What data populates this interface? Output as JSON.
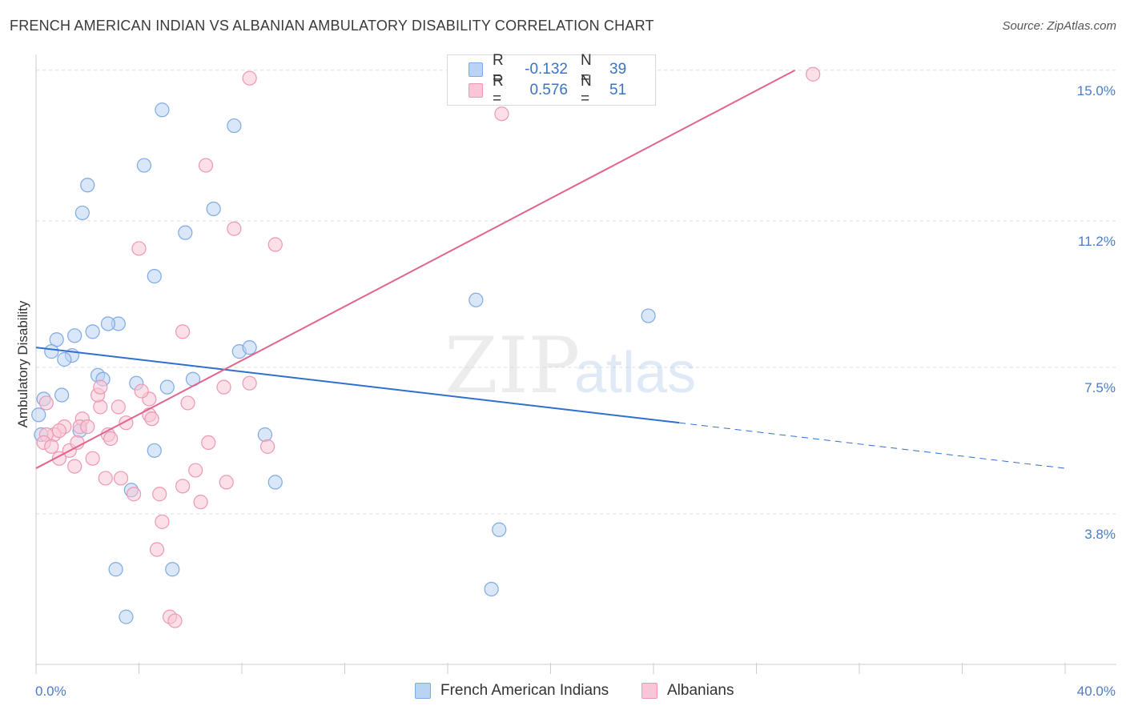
{
  "title": "FRENCH AMERICAN INDIAN VS ALBANIAN AMBULATORY DISABILITY CORRELATION CHART",
  "source": "Source: ZipAtlas.com",
  "watermark": {
    "zip": "ZIP",
    "atlas": "atlas"
  },
  "colors": {
    "blue_fill": "#b9d3f2",
    "blue_stroke": "#7eaae3",
    "blue_line": "#2f6fce",
    "pink_fill": "#f8c6d6",
    "pink_stroke": "#ec97b4",
    "pink_line": "#e0648e",
    "grid": "#dddddd",
    "label": "#4a7cc9"
  },
  "legend": {
    "rows": [
      {
        "r_label": "R =",
        "r_value": "-0.132",
        "n_label": "N =",
        "n_value": "39"
      },
      {
        "r_label": "R =",
        "r_value": "0.576",
        "n_label": "N =",
        "n_value": "51"
      }
    ]
  },
  "bottom_legend": {
    "series1": "French American Indians",
    "series2": "Albanians"
  },
  "chart_data": {
    "type": "scatter",
    "xlabel": "",
    "ylabel": "Ambulatory Disability",
    "xlim": [
      0,
      40
    ],
    "ylim": [
      0,
      15.4
    ],
    "x_tick_labels": [
      "0.0%",
      "40.0%"
    ],
    "y_ticks": [
      3.8,
      7.5,
      11.2,
      15.0
    ],
    "y_tick_labels": [
      "3.8%",
      "7.5%",
      "11.2%",
      "15.0%"
    ],
    "grid": true,
    "series": [
      {
        "name": "French American Indians",
        "color": "#b9d3f2",
        "points": [
          [
            4.9,
            14.0
          ],
          [
            7.7,
            13.6
          ],
          [
            4.2,
            12.6
          ],
          [
            2.0,
            12.1
          ],
          [
            1.8,
            11.4
          ],
          [
            6.9,
            11.5
          ],
          [
            5.8,
            10.9
          ],
          [
            4.6,
            9.8
          ],
          [
            17.1,
            9.2
          ],
          [
            23.8,
            8.8
          ],
          [
            3.2,
            8.6
          ],
          [
            2.8,
            8.6
          ],
          [
            2.2,
            8.4
          ],
          [
            1.5,
            8.3
          ],
          [
            0.8,
            8.2
          ],
          [
            0.6,
            7.9
          ],
          [
            7.9,
            7.9
          ],
          [
            8.3,
            8.0
          ],
          [
            1.4,
            7.8
          ],
          [
            1.1,
            7.7
          ],
          [
            2.4,
            7.3
          ],
          [
            2.6,
            7.2
          ],
          [
            6.1,
            7.2
          ],
          [
            3.9,
            7.1
          ],
          [
            5.1,
            7.0
          ],
          [
            1.0,
            6.8
          ],
          [
            0.3,
            6.7
          ],
          [
            1.7,
            5.9
          ],
          [
            8.9,
            5.8
          ],
          [
            4.6,
            5.4
          ],
          [
            9.3,
            4.6
          ],
          [
            3.7,
            4.4
          ],
          [
            18.0,
            3.4
          ],
          [
            3.1,
            2.4
          ],
          [
            5.3,
            2.4
          ],
          [
            17.7,
            1.9
          ],
          [
            3.5,
            1.2
          ],
          [
            0.1,
            6.3
          ],
          [
            0.2,
            5.8
          ]
        ]
      },
      {
        "name": "Albanians",
        "color": "#f8c6d6",
        "points": [
          [
            8.3,
            14.8
          ],
          [
            30.2,
            14.9
          ],
          [
            18.1,
            13.9
          ],
          [
            6.6,
            12.6
          ],
          [
            7.7,
            11.0
          ],
          [
            9.3,
            10.6
          ],
          [
            4.0,
            10.5
          ],
          [
            5.7,
            8.4
          ],
          [
            8.3,
            7.1
          ],
          [
            7.3,
            7.0
          ],
          [
            5.9,
            6.6
          ],
          [
            4.4,
            6.7
          ],
          [
            4.1,
            6.9
          ],
          [
            3.2,
            6.5
          ],
          [
            2.5,
            6.5
          ],
          [
            2.4,
            6.8
          ],
          [
            2.5,
            7.0
          ],
          [
            4.4,
            6.3
          ],
          [
            4.5,
            6.2
          ],
          [
            3.5,
            6.1
          ],
          [
            2.8,
            5.8
          ],
          [
            2.9,
            5.7
          ],
          [
            1.8,
            6.2
          ],
          [
            1.7,
            6.0
          ],
          [
            2.0,
            6.0
          ],
          [
            1.1,
            6.0
          ],
          [
            0.7,
            5.8
          ],
          [
            0.4,
            5.8
          ],
          [
            0.3,
            5.6
          ],
          [
            0.6,
            5.5
          ],
          [
            1.3,
            5.4
          ],
          [
            0.9,
            5.2
          ],
          [
            1.5,
            5.0
          ],
          [
            0.4,
            6.6
          ],
          [
            6.7,
            5.6
          ],
          [
            9.0,
            5.5
          ],
          [
            6.2,
            4.9
          ],
          [
            3.3,
            4.7
          ],
          [
            2.7,
            4.7
          ],
          [
            7.4,
            4.6
          ],
          [
            5.7,
            4.5
          ],
          [
            4.8,
            4.3
          ],
          [
            3.8,
            4.3
          ],
          [
            6.4,
            4.1
          ],
          [
            4.9,
            3.6
          ],
          [
            4.7,
            2.9
          ],
          [
            5.2,
            1.2
          ],
          [
            5.4,
            1.1
          ],
          [
            0.9,
            5.9
          ],
          [
            1.6,
            5.6
          ],
          [
            2.2,
            5.2
          ]
        ]
      }
    ],
    "trend_lines": [
      {
        "series": "French American Indians",
        "x_start": 0,
        "y_start": 8.0,
        "x_solid_end": 25.0,
        "y_solid_end": 6.1,
        "x_end": 40.0,
        "y_end": 4.95
      },
      {
        "series": "Albanians",
        "x_start": 0,
        "y_start": 4.95,
        "x_end": 29.5,
        "y_end": 15.0
      }
    ]
  }
}
